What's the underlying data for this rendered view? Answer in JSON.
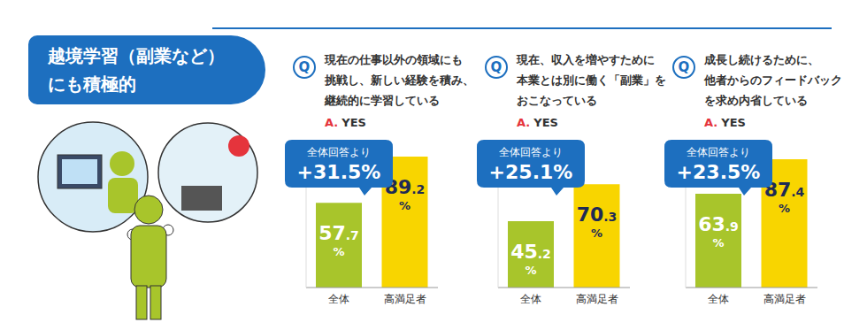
{
  "heading": [
    "越境学習（副業など）",
    "にも積極的"
  ],
  "chart_data": [
    {
      "type": "bar",
      "title": [
        "現在の仕事以外の領域にも",
        "挑戦し、新しい経験を積み、",
        "継続的に学習している"
      ],
      "question_mark": "Q",
      "answer": [
        "A.",
        "YES"
      ],
      "annotation": [
        "全体回答より",
        "+31.5%"
      ],
      "categories": [
        "全体",
        "高満足者"
      ],
      "values": [
        57.7,
        89.2
      ],
      "value_labels": [
        "57.7%",
        "89.2%"
      ],
      "data_labels": true,
      "colors": [
        "#a8c52b",
        "#f8d500"
      ],
      "ylim": [
        0,
        100
      ],
      "tick_labels": "x",
      "grid": false
    },
    {
      "type": "bar",
      "title": [
        "現在、収入を増やすために",
        "本業とは別に働く「副業」を",
        "おこなっている"
      ],
      "question_mark": "Q",
      "answer": [
        "A.",
        "YES"
      ],
      "annotation": [
        "全体回答より",
        "+25.1%"
      ],
      "categories": [
        "全体",
        "高満足者"
      ],
      "values": [
        45.2,
        70.3
      ],
      "value_labels": [
        "45.2%",
        "70.3%"
      ],
      "data_labels": true,
      "colors": [
        "#a8c52b",
        "#f8d500"
      ],
      "ylim": [
        0,
        100
      ],
      "tick_labels": "x",
      "grid": false
    },
    {
      "type": "bar",
      "title": [
        "成長し続けるために、",
        "他者からのフィードバック",
        "を求め内省している"
      ],
      "question_mark": "Q",
      "answer": [
        "A.",
        "YES"
      ],
      "annotation": [
        "全体回答より",
        "+23.5%"
      ],
      "categories": [
        "全体",
        "高満足者"
      ],
      "values": [
        63.9,
        87.4
      ],
      "value_labels": [
        "63.9%",
        "87.4%"
      ],
      "data_labels": true,
      "colors": [
        "#a8c52b",
        "#f8d500"
      ],
      "ylim": [
        0,
        100
      ],
      "tick_labels": "x",
      "grid": false
    }
  ]
}
